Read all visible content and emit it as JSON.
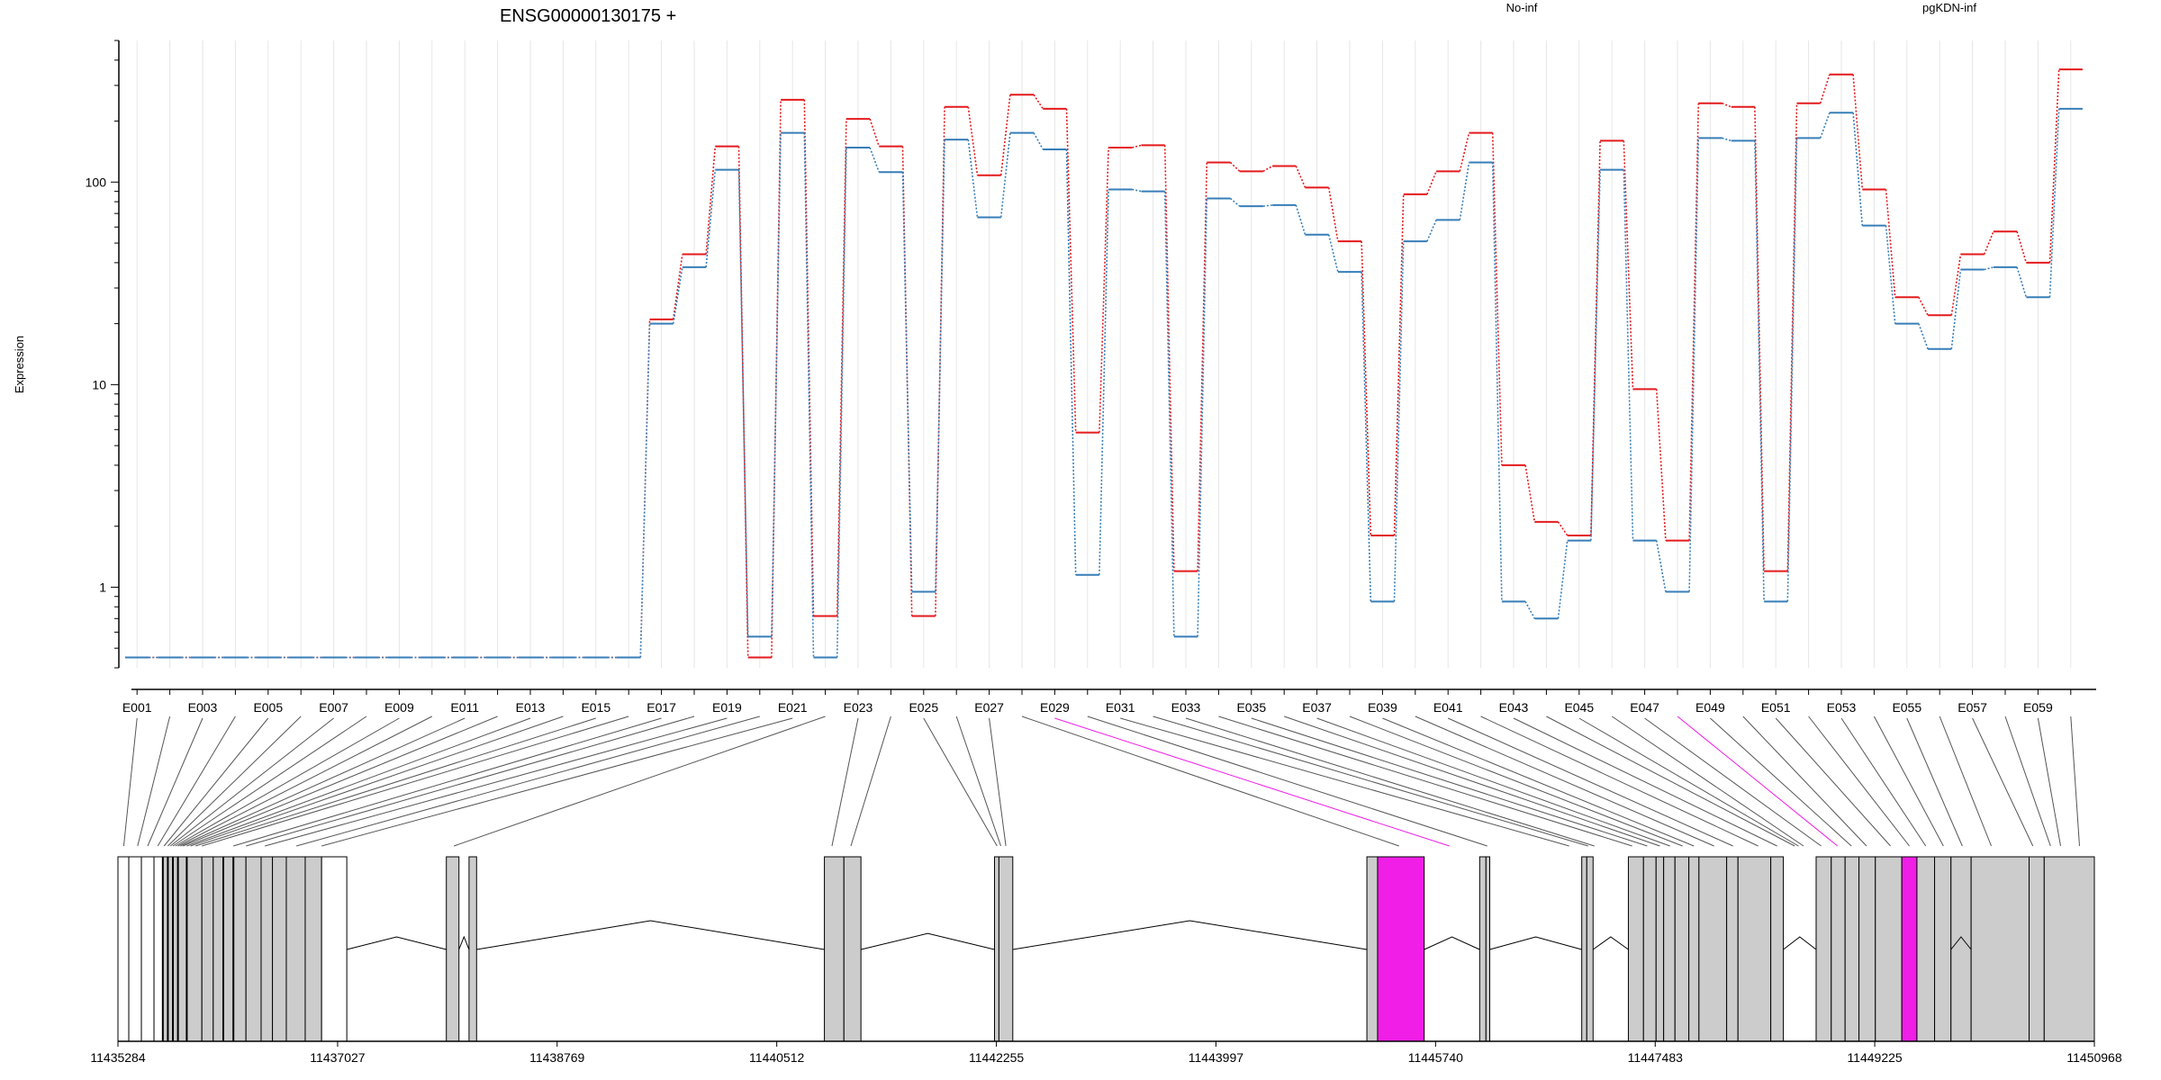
{
  "chart_data": {
    "type": "line",
    "title": "ENSG00000130175 +",
    "ylabel": "Expression",
    "yscale": "log",
    "ylim": [
      0.4,
      500
    ],
    "y_ticks": [
      1,
      10,
      100
    ],
    "y_tick_labels": [
      "1",
      "10",
      "100"
    ],
    "grid": "vertical",
    "legend": "top, horizontal",
    "exons": [
      "E001",
      "E002",
      "E003",
      "E004",
      "E005",
      "E006",
      "E007",
      "E008",
      "E009",
      "E010",
      "E011",
      "E012",
      "E013",
      "E014",
      "E015",
      "E016",
      "E017",
      "E018",
      "E019",
      "E020",
      "E021",
      "E022",
      "E023",
      "E024",
      "E025",
      "E026",
      "E027",
      "E028",
      "E029",
      "E030",
      "E031",
      "E032",
      "E033",
      "E034",
      "E035",
      "E036",
      "E037",
      "E038",
      "E039",
      "E040",
      "E041",
      "E042",
      "E043",
      "E044",
      "E045",
      "E046",
      "E047",
      "E048",
      "E049",
      "E050",
      "E051",
      "E052",
      "E053",
      "E054",
      "E055",
      "E056",
      "E057",
      "E058",
      "E059",
      "E060"
    ],
    "exon_tick_labels": [
      "E001",
      "E003",
      "E005",
      "E007",
      "E009",
      "E011",
      "E013",
      "E015",
      "E017",
      "E019",
      "E021",
      "E023",
      "E025",
      "E027",
      "E029",
      "E031",
      "E033",
      "E035",
      "E037",
      "E039",
      "E041",
      "E043",
      "E045",
      "E047",
      "E049",
      "E051",
      "E053",
      "E055",
      "E057",
      "E059"
    ],
    "series": [
      {
        "name": "No-inf",
        "color": "#e41a1c",
        "values": [
          0.45,
          0.45,
          0.45,
          0.45,
          0.45,
          0.45,
          0.45,
          0.45,
          0.45,
          0.45,
          0.45,
          0.45,
          0.45,
          0.45,
          0.45,
          0.45,
          21,
          44,
          150,
          0.45,
          255,
          0.72,
          205,
          150,
          0.72,
          235,
          108,
          270,
          230,
          5.8,
          148,
          152,
          1.2,
          125,
          113,
          120,
          94,
          51,
          1.8,
          87,
          113,
          175,
          4.0,
          2.1,
          1.8,
          160,
          9.5,
          1.7,
          245,
          235,
          1.2,
          245,
          340,
          92,
          27,
          22,
          44,
          57,
          40,
          360
        ]
      },
      {
        "name": "pgKDN-inf",
        "color": "#377eb8",
        "values": [
          0.45,
          0.45,
          0.45,
          0.45,
          0.45,
          0.45,
          0.45,
          0.45,
          0.45,
          0.45,
          0.45,
          0.45,
          0.45,
          0.45,
          0.45,
          0.45,
          20,
          38,
          115,
          0.57,
          175,
          0.45,
          148,
          112,
          0.95,
          162,
          67,
          175,
          145,
          1.15,
          92,
          90,
          0.57,
          83,
          76,
          77,
          55,
          36,
          0.85,
          51,
          65,
          125,
          0.85,
          0.7,
          1.7,
          115,
          1.7,
          0.95,
          165,
          160,
          0.85,
          165,
          220,
          61,
          20,
          15,
          37,
          38,
          27,
          230
        ]
      }
    ],
    "exon_highlight": [
      "E029",
      "E048"
    ],
    "highlight_color": "#f01ee6",
    "genomic_axis": {
      "ticks": [
        11435284,
        11437027,
        11438769,
        11440512,
        11442255,
        11443997,
        11445740,
        11447483,
        11449225,
        11450968
      ],
      "range": [
        11435284,
        11450968
      ]
    }
  }
}
